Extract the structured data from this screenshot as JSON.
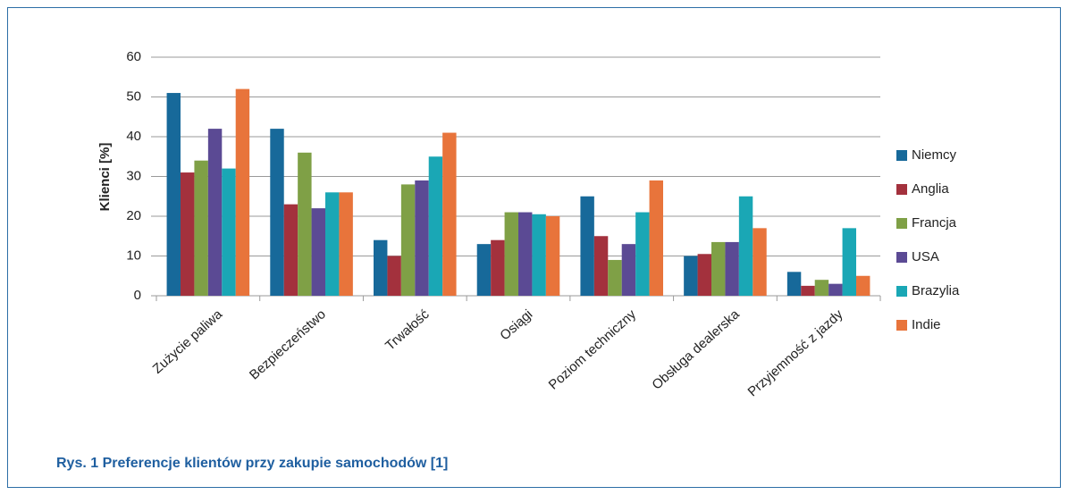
{
  "chart_data": {
    "type": "bar",
    "caption": "Rys. 1 Preferencje klientów przy zakupie samochodów [1]",
    "ylabel": "Klienci  [%]",
    "categories": [
      "Zużycie paliwa",
      "Bezpieczeństwo",
      "Trwałość",
      "Osiągi",
      "Poziom techniczny",
      "Obsługa dealerska",
      "Przyjemność z jazdy"
    ],
    "series": [
      {
        "name": "Niemcy",
        "color": "#17699a",
        "values": [
          51,
          42,
          14,
          13,
          25,
          10,
          6
        ]
      },
      {
        "name": "Anglia",
        "color": "#a3313d",
        "values": [
          31,
          23,
          10,
          14,
          15,
          10.5,
          2.5
        ]
      },
      {
        "name": "Francja",
        "color": "#7fa046",
        "values": [
          34,
          36,
          28,
          21,
          9,
          13.5,
          4
        ]
      },
      {
        "name": "USA",
        "color": "#5b4a94",
        "values": [
          42,
          22,
          29,
          21,
          13,
          13.5,
          3
        ]
      },
      {
        "name": "Brazylia",
        "color": "#1aa7b5",
        "values": [
          32,
          26,
          35,
          20.5,
          21,
          25,
          17
        ]
      },
      {
        "name": "Indie",
        "color": "#e8743b",
        "values": [
          52,
          26,
          41,
          20,
          29,
          17,
          5
        ]
      }
    ],
    "ylim": [
      0,
      60
    ],
    "yticks": [
      0,
      10,
      20,
      30,
      40,
      50,
      60
    ],
    "grid": true,
    "legend": "right"
  }
}
